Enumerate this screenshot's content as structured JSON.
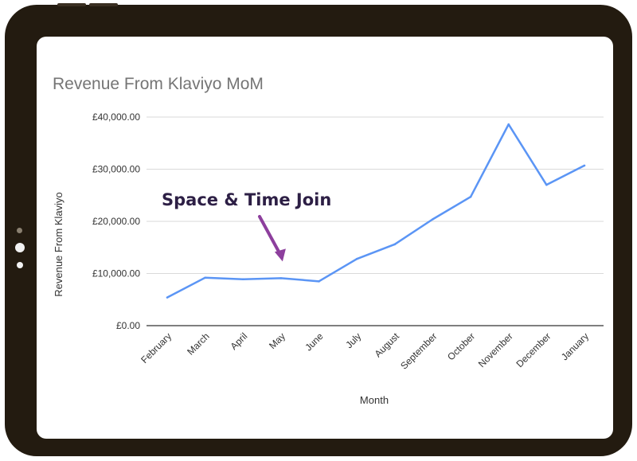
{
  "chart_data": {
    "type": "line",
    "title": "Revenue From Klaviyo MoM",
    "xlabel": "Month",
    "ylabel": "Revenue From Klaviyo",
    "categories": [
      "February",
      "March",
      "April",
      "May",
      "June",
      "July",
      "August",
      "September",
      "October",
      "November",
      "December",
      "January"
    ],
    "yticks": [
      "£0.00",
      "£10,000.00",
      "£20,000.00",
      "£30,000.00",
      "£40,000.00"
    ],
    "ylim": [
      0,
      40000
    ],
    "series": [
      {
        "values": [
          5400,
          9200,
          8900,
          9100,
          8500,
          12800,
          15600,
          20400,
          24700,
          38600,
          27000,
          30700
        ]
      }
    ],
    "grid": true,
    "annotation": {
      "text": "Space & Time Join",
      "category": "May"
    },
    "colors": {
      "line": "#5b95f5",
      "annotation_text": "#2d1f45",
      "annotation_arrow": "#8d3f9d",
      "grid": "#d9d9d9",
      "title": "#757575"
    }
  }
}
